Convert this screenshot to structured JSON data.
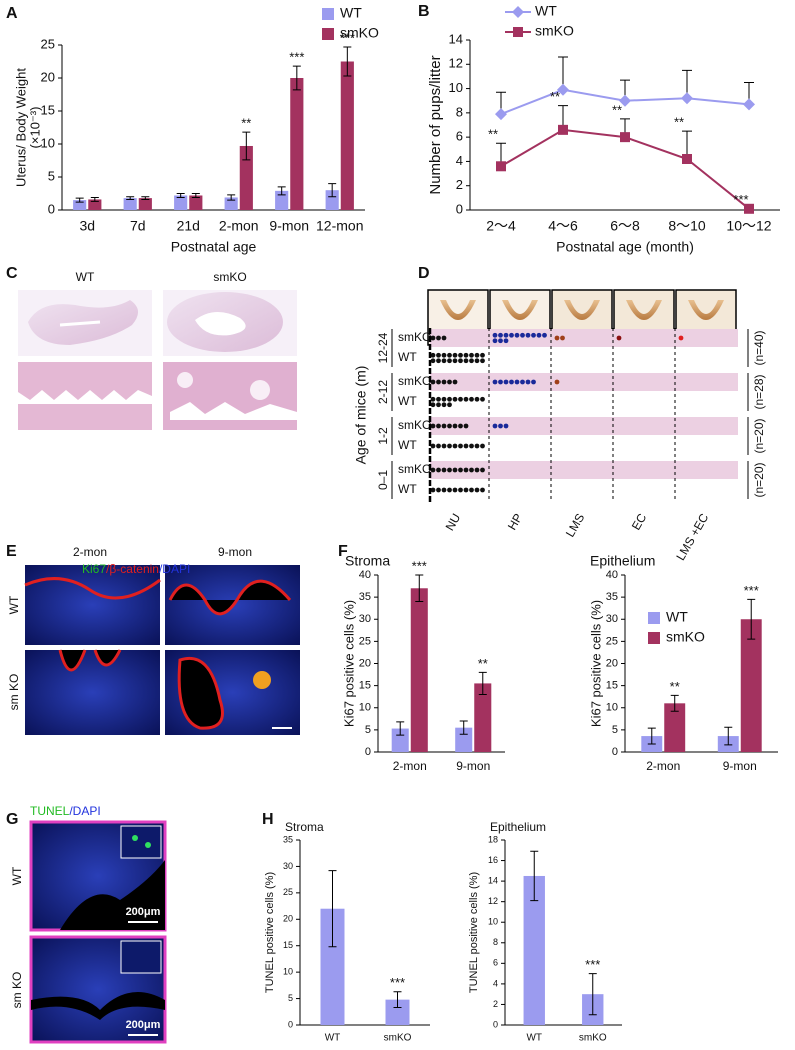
{
  "panel_labels": [
    "A",
    "B",
    "C",
    "D",
    "E",
    "F",
    "G",
    "H"
  ],
  "chart_data": [
    {
      "type": "bar",
      "ylabel": [
        "Uterus/ Body Weight",
        "(×10⁻³)"
      ],
      "xlabel": "Postnatal age",
      "categories": [
        "3d",
        "7d",
        "21d",
        "2-mon",
        "9-mon",
        "12-mon"
      ],
      "series": [
        {
          "name": "WT",
          "color": "#9b9bef",
          "values": [
            1.5,
            1.8,
            2.2,
            1.9,
            2.9,
            3.0
          ],
          "errors": [
            0.3,
            0.2,
            0.3,
            0.4,
            0.6,
            1.0
          ]
        },
        {
          "name": "smKO",
          "color": "#a3325f",
          "values": [
            1.6,
            1.8,
            2.2,
            9.7,
            20,
            22.5
          ],
          "errors": [
            0.3,
            0.2,
            0.3,
            2.1,
            1.8,
            2.2
          ],
          "significance": [
            null,
            null,
            null,
            "**",
            "***",
            "***"
          ]
        }
      ],
      "ylim": [
        0,
        25
      ],
      "yticks": [
        0,
        5,
        10,
        15,
        20,
        25
      ],
      "legend": "upper right"
    },
    {
      "type": "line",
      "ylabel": "Number of pups/litter",
      "xlabel": "Postnatal age (month)",
      "categories": [
        "2～4",
        "4～6",
        "6～8",
        "8～10",
        "10～12"
      ],
      "series": [
        {
          "name": "WT",
          "color": "#9b9bef",
          "marker": "diamond",
          "values": [
            7.9,
            9.9,
            9.0,
            9.2,
            8.7
          ],
          "errors": [
            1.8,
            2.7,
            1.7,
            2.3,
            1.8
          ]
        },
        {
          "name": "smKO",
          "color": "#a3325f",
          "marker": "square",
          "values": [
            3.6,
            6.6,
            6.0,
            4.2,
            0.1
          ],
          "errors": [
            1.9,
            2.0,
            1.5,
            2.3,
            0
          ],
          "significance": [
            "**",
            "**",
            "**",
            "**",
            "***"
          ]
        }
      ],
      "ylim": [
        0,
        14
      ],
      "yticks": [
        0,
        2,
        4,
        6,
        8,
        10,
        12,
        14
      ],
      "legend": "upper left"
    },
    {
      "type": "dot-matrix",
      "ylabel": "Age of mice (m)",
      "columns": [
        "NU",
        "HP",
        "LMS",
        "EC",
        "LMS +EC"
      ],
      "colors": [
        "#111111",
        "#1a2a9a",
        "#a0401a",
        "#8a1010",
        "#e02020"
      ],
      "groups": [
        {
          "age": "12-24",
          "n": "(n=40)",
          "rows": [
            {
              "name": "smKO",
              "counts": [
                3,
                13,
                2,
                1,
                1
              ]
            },
            {
              "name": "WT",
              "counts": [
                20,
                0,
                0,
                0,
                0
              ]
            }
          ]
        },
        {
          "age": "2-12",
          "n": "(n=28)",
          "rows": [
            {
              "name": "smKO",
              "counts": [
                5,
                8,
                1,
                0,
                0
              ]
            },
            {
              "name": "WT",
              "counts": [
                14,
                0,
                0,
                0,
                0
              ]
            }
          ]
        },
        {
          "age": "1-2",
          "n": "(n=20)",
          "rows": [
            {
              "name": "smKO",
              "counts": [
                7,
                3,
                0,
                0,
                0
              ]
            },
            {
              "name": "WT",
              "counts": [
                10,
                0,
                0,
                0,
                0
              ]
            }
          ]
        },
        {
          "age": "0–1",
          "n": "(n=20)",
          "rows": [
            {
              "name": "smKO",
              "counts": [
                10,
                0,
                0,
                0,
                0
              ]
            },
            {
              "name": "WT",
              "counts": [
                10,
                0,
                0,
                0,
                0
              ]
            }
          ]
        }
      ]
    },
    {
      "type": "bar",
      "title": "Stroma",
      "ylabel": "Ki67 positive cells (%)",
      "categories": [
        "2-mon",
        "9-mon"
      ],
      "series": [
        {
          "name": "WT",
          "color": "#9b9bef",
          "values": [
            5.3,
            5.5
          ],
          "errors": [
            1.5,
            1.5
          ]
        },
        {
          "name": "smKO",
          "color": "#a3325f",
          "values": [
            37,
            15.5
          ],
          "errors": [
            3,
            2.5
          ],
          "significance": [
            "***",
            "**"
          ]
        }
      ],
      "ylim": [
        0,
        40
      ],
      "yticks": [
        0,
        5,
        10,
        15,
        20,
        25,
        30,
        35,
        40
      ]
    },
    {
      "type": "bar",
      "title": "Epithelium",
      "ylabel": "Ki67 positive cells (%)",
      "categories": [
        "2-mon",
        "9-mon"
      ],
      "series": [
        {
          "name": "WT",
          "color": "#9b9bef",
          "values": [
            3.6,
            3.6
          ],
          "errors": [
            1.8,
            2.0
          ]
        },
        {
          "name": "smKO",
          "color": "#a3325f",
          "values": [
            11,
            30
          ],
          "errors": [
            1.8,
            4.5
          ],
          "significance": [
            "**",
            "***"
          ]
        }
      ],
      "ylim": [
        0,
        40
      ],
      "yticks": [
        0,
        5,
        10,
        15,
        20,
        25,
        30,
        35,
        40
      ],
      "legend": "upper left"
    },
    {
      "type": "bar",
      "title": "Stroma",
      "ylabel": "TUNEL positive cells (%)",
      "categories": [
        "WT",
        "smKO"
      ],
      "values": [
        22,
        4.8
      ],
      "errors": [
        7.2,
        1.5
      ],
      "significance": [
        null,
        "***"
      ],
      "color": "#9b9bef",
      "ylim": [
        0,
        35
      ],
      "yticks": [
        0,
        5,
        10,
        15,
        20,
        25,
        30,
        35
      ]
    },
    {
      "type": "bar",
      "title": "Epithelium",
      "ylabel": "TUNEL positive cells (%)",
      "categories": [
        "WT",
        "smKO"
      ],
      "values": [
        14.5,
        3
      ],
      "errors": [
        2.4,
        2
      ],
      "significance": [
        null,
        "***"
      ],
      "color": "#9b9bef",
      "ylim": [
        0,
        18
      ],
      "yticks": [
        0,
        2,
        4,
        6,
        8,
        10,
        12,
        14,
        16,
        18
      ]
    }
  ],
  "panel_c": {
    "labels": [
      "WT",
      "smKO"
    ]
  },
  "panel_e": {
    "columns": [
      "2-mon",
      "9-mon"
    ],
    "rows": [
      "WT",
      "sm KO"
    ],
    "stain": [
      {
        "text": "Ki67",
        "color": "#22bb22"
      },
      {
        "text": "/β-catenin",
        "color": "#e02020"
      },
      {
        "text": "/DAPI",
        "color": "#2233dd"
      }
    ]
  },
  "panel_g": {
    "rows": [
      "WT",
      "sm KO"
    ],
    "scale_bar": "200μm",
    "stain": [
      {
        "text": "TUNEL",
        "color": "#22bb22"
      },
      {
        "text": "/DAPI",
        "color": "#2233dd"
      }
    ]
  }
}
